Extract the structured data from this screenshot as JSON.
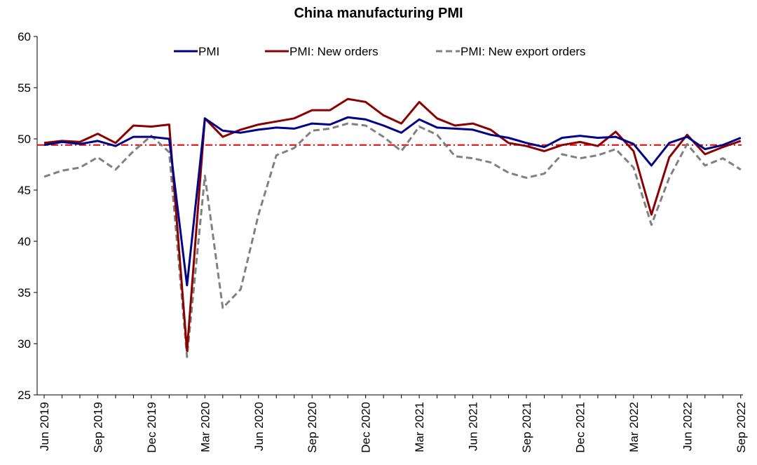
{
  "chart_data": {
    "type": "line",
    "title": "China manufacturing PMI",
    "xlabel": "",
    "ylabel": "",
    "ylim": [
      25,
      60
    ],
    "yticks": [
      25,
      30,
      35,
      40,
      45,
      50,
      55,
      60
    ],
    "x": [
      "Jun 2019",
      "Jul 2019",
      "Aug 2019",
      "Sep 2019",
      "Oct 2019",
      "Nov 2019",
      "Dec 2019",
      "Jan 2020",
      "Feb 2020",
      "Mar 2020",
      "Apr 2020",
      "May 2020",
      "Jun 2020",
      "Jul 2020",
      "Aug 2020",
      "Sep 2020",
      "Oct 2020",
      "Nov 2020",
      "Dec 2020",
      "Jan 2021",
      "Feb 2021",
      "Mar 2021",
      "Apr 2021",
      "May 2021",
      "Jun 2021",
      "Jul 2021",
      "Aug 2021",
      "Sep 2021",
      "Oct 2021",
      "Nov 2021",
      "Dec 2021",
      "Jan 2022",
      "Feb 2022",
      "Mar 2022",
      "Apr 2022",
      "May 2022",
      "Jun 2022",
      "Jul 2022",
      "Aug 2022",
      "Sep 2022"
    ],
    "xtick_labels": [
      "Jun 2019",
      "Sep 2019",
      "Dec 2019",
      "Mar 2020",
      "Jun 2020",
      "Sep 2020",
      "Dec 2020",
      "Mar 2021",
      "Jun 2021",
      "Sep 2021",
      "Dec 2021",
      "Mar 2022",
      "Jun 2022",
      "Sep 2022"
    ],
    "series": [
      {
        "name": "PMI",
        "color": "#00008B",
        "style": "solid",
        "values": [
          49.4,
          49.7,
          49.5,
          49.8,
          49.3,
          50.2,
          50.2,
          50.0,
          35.7,
          52.0,
          50.8,
          50.6,
          50.9,
          51.1,
          51.0,
          51.5,
          51.4,
          52.1,
          51.9,
          51.3,
          50.6,
          51.9,
          51.1,
          51.0,
          50.9,
          50.4,
          50.1,
          49.6,
          49.2,
          50.1,
          50.3,
          50.1,
          50.2,
          49.5,
          47.4,
          49.6,
          50.2,
          49.0,
          49.4,
          50.1
        ]
      },
      {
        "name": "PMI: New orders",
        "color": "#8B0000",
        "style": "solid",
        "values": [
          49.6,
          49.8,
          49.7,
          50.5,
          49.6,
          51.3,
          51.2,
          51.4,
          29.3,
          52.0,
          50.2,
          50.9,
          51.4,
          51.7,
          52.0,
          52.8,
          52.8,
          53.9,
          53.6,
          52.3,
          51.5,
          53.6,
          52.0,
          51.3,
          51.5,
          50.9,
          49.6,
          49.3,
          48.8,
          49.4,
          49.7,
          49.3,
          50.7,
          48.8,
          42.6,
          48.2,
          50.4,
          48.5,
          49.2,
          49.8
        ]
      },
      {
        "name": "PMI: New export orders",
        "color": "#808080",
        "style": "dashed",
        "values": [
          46.3,
          46.9,
          47.2,
          48.2,
          47.0,
          48.8,
          50.3,
          48.7,
          28.7,
          46.4,
          33.5,
          35.3,
          42.6,
          48.4,
          49.1,
          50.8,
          51.0,
          51.5,
          51.3,
          50.2,
          48.8,
          51.2,
          50.4,
          48.3,
          48.1,
          47.7,
          46.7,
          46.2,
          46.6,
          48.5,
          48.1,
          48.4,
          49.0,
          47.2,
          41.6,
          46.2,
          49.5,
          47.4,
          48.1,
          47.0
        ]
      }
    ],
    "reference_line": {
      "value": 49.4,
      "color": "#E00000",
      "style": "dash-dot"
    },
    "legend": {
      "placement": "top-center"
    },
    "grid": false
  }
}
